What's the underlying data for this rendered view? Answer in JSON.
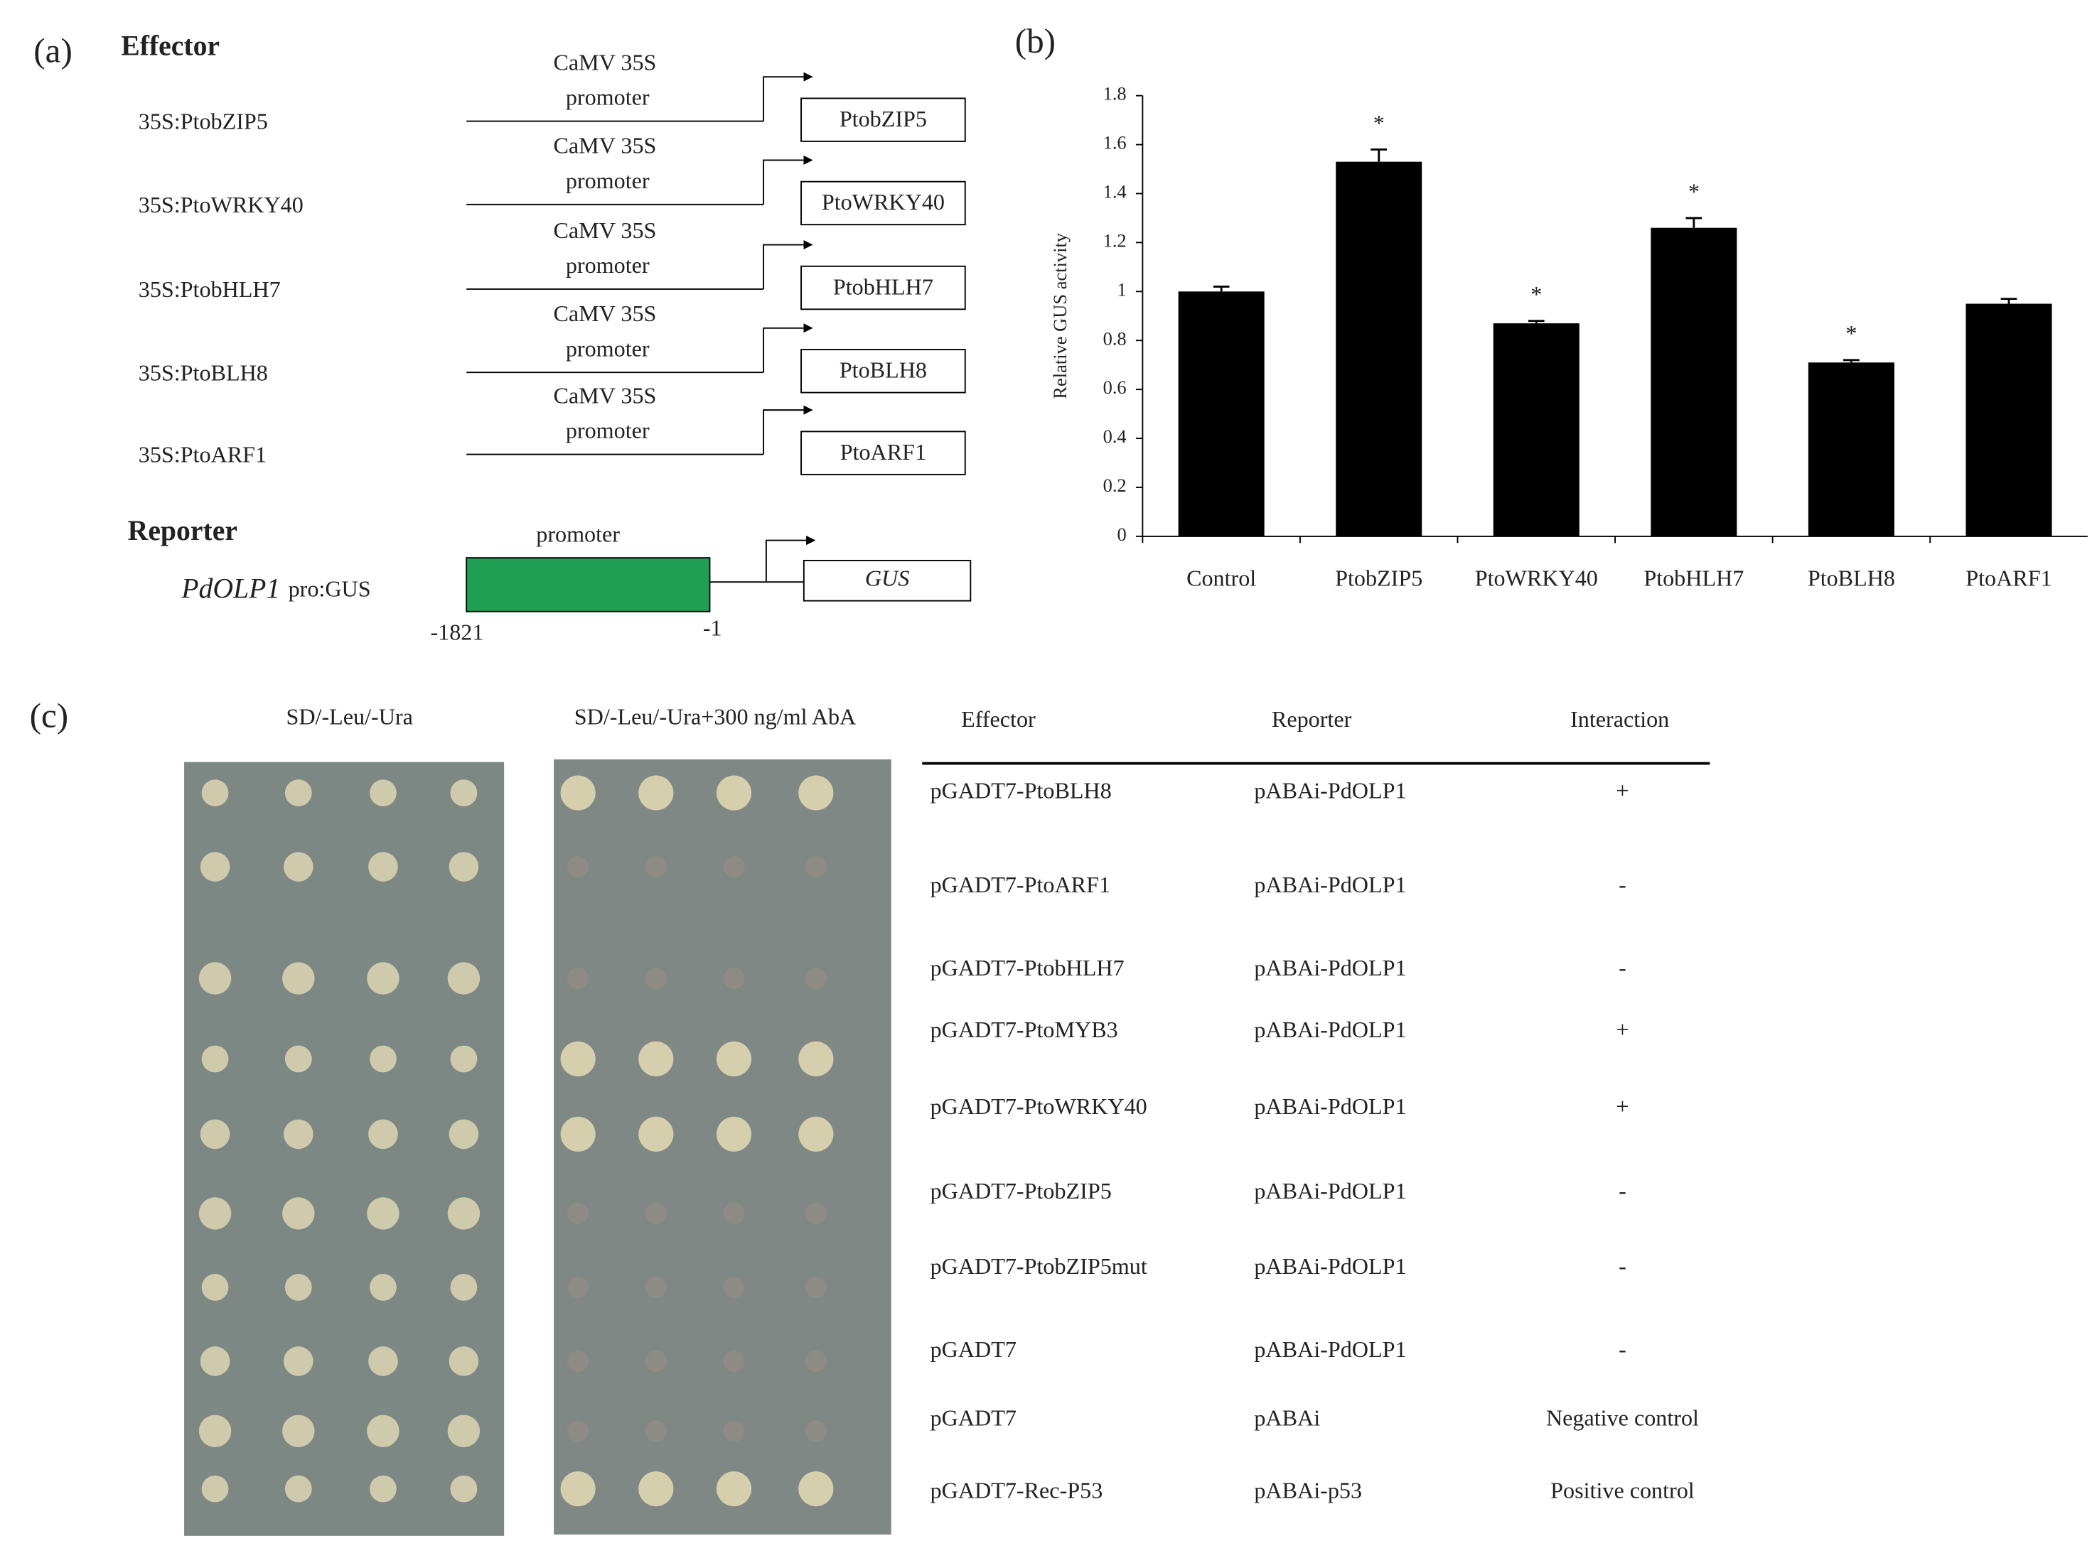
{
  "panel_a": {
    "label": "(a)",
    "effector_title": "Effector",
    "effectors": [
      {
        "name": "35S:PtobZIP5",
        "promoter": [
          "CaMV 35S",
          "promoter"
        ],
        "gene": "PtobZIP5"
      },
      {
        "name": "35S:PtoWRKY40",
        "promoter": [
          "CaMV 35S",
          "promoter"
        ],
        "gene": "PtoWRKY40"
      },
      {
        "name": "35S:PtobHLH7",
        "promoter": [
          "CaMV 35S",
          "promoter"
        ],
        "gene": "PtobHLH7"
      },
      {
        "name": "35S:PtoBLH8",
        "promoter": [
          "CaMV 35S",
          "promoter"
        ],
        "gene": "PtoBLH8"
      },
      {
        "name": "35S:PtoARF1",
        "promoter": [
          "CaMV 35S",
          "promoter"
        ],
        "gene": "PtoARF1"
      }
    ],
    "reporter_title": "Reporter",
    "reporter": {
      "name": "PdOLP1",
      "suffix": "pro:GUS",
      "promoter": "promoter",
      "gene": "GUS",
      "start": "-1821",
      "end": "-1"
    }
  },
  "chart_data": {
    "type": "bar",
    "label": "(b)",
    "ylabel": "Relative GUS activity",
    "categories": [
      "Control",
      "PtobZIP5",
      "PtoWRKY40",
      "PtobHLH7",
      "PtoBLH8",
      "PtoARF1"
    ],
    "values": [
      1.0,
      1.53,
      0.87,
      1.26,
      0.71,
      0.95
    ],
    "errors": [
      0.02,
      0.05,
      0.01,
      0.04,
      0.01,
      0.02
    ],
    "significance": [
      null,
      "*",
      "*",
      "*",
      "*",
      null
    ],
    "color": "#000000",
    "ylim": [
      0,
      1.8
    ],
    "yticks": [
      0,
      0.2,
      0.4,
      0.6,
      0.8,
      1,
      1.2,
      1.4,
      1.6,
      1.8
    ]
  },
  "panel_c": {
    "label": "(c)",
    "plate_titles": [
      "SD/-Leu/-Ura",
      "SD/-Leu/-Ura+300 ng/ml AbA"
    ],
    "table": {
      "header": [
        "Effector",
        "Reporter",
        "Interaction"
      ],
      "rows": [
        [
          "pGADT7-PtoBLH8",
          "pABAi-PdOLP1",
          "+"
        ],
        [
          "pGADT7-PtoARF1",
          "pABAi-PdOLP1",
          "-"
        ],
        [
          "pGADT7-PtobHLH7",
          "pABAi-PdOLP1",
          "-"
        ],
        [
          "pGADT7-PtoMYB3",
          "pABAi-PdOLP1",
          "+"
        ],
        [
          "pGADT7-PtoWRKY40",
          "pABAi-PdOLP1",
          "+"
        ],
        [
          "pGADT7-PtobZIP5",
          "pABAi-PdOLP1",
          "-"
        ],
        [
          "pGADT7-PtobZIP5mut",
          "pABAi-PdOLP1",
          "-"
        ],
        [
          "pGADT7",
          "pABAi-PdOLP1",
          "-"
        ],
        [
          "pGADT7",
          "pABAi",
          "Negative control"
        ],
        [
          "pGADT7-Rec-P53",
          "pABAi-p53",
          "Positive control"
        ]
      ]
    }
  }
}
